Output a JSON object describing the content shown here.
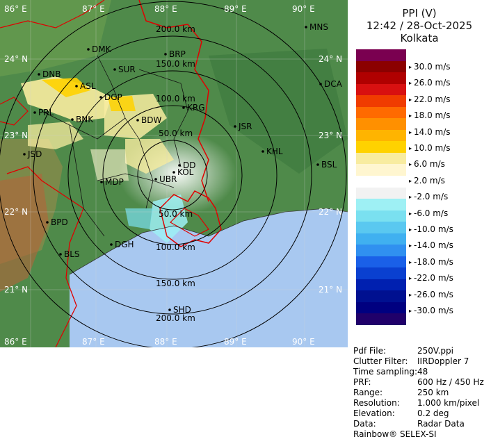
{
  "header": {
    "title": "PPI (V)",
    "datetime": "12:42 / 28-Oct-2025",
    "station": "Kolkata"
  },
  "legend": {
    "colors": [
      "#7a0050",
      "#8b0000",
      "#b00000",
      "#d81010",
      "#f03c00",
      "#ff6a00",
      "#ff9000",
      "#ffb400",
      "#ffd200",
      "#f8eca0",
      "#fff6d0",
      "#ffffff",
      "#f2f2f2",
      "#9ef0f4",
      "#7ae0f0",
      "#5ac8f0",
      "#40b0f0",
      "#3090f0",
      "#1a60e8",
      "#0a40d0",
      "#0020b0",
      "#001090",
      "#000080",
      "#20006a"
    ],
    "labels": [
      "30.0 m/s",
      "26.0 m/s",
      "22.0 m/s",
      "18.0 m/s",
      "14.0 m/s",
      "10.0 m/s",
      "6.0 m/s",
      "2.0 m/s",
      "-2.0 m/s",
      "-6.0 m/s",
      "-10.0 m/s",
      "-14.0 m/s",
      "-18.0 m/s",
      "-22.0 m/s",
      "-26.0 m/s",
      "-30.0 m/s"
    ]
  },
  "metadata": [
    {
      "key": "Pdf File:",
      "value": "250V.ppi"
    },
    {
      "key": "Clutter Filter:",
      "value": "IIRDoppler 7"
    },
    {
      "key": "Time sampling:",
      "value": "48"
    },
    {
      "key": "PRF:",
      "value": "600 Hz / 450 Hz"
    },
    {
      "key": "Range:",
      "value": "250 km"
    },
    {
      "key": "Resolution:",
      "value": "1.000 km/pixel"
    },
    {
      "key": "Elevation:",
      "value": "0.2 deg"
    },
    {
      "key": "Data:",
      "value": "Radar Data"
    }
  ],
  "footer": "Rainbow® SELEX-SI",
  "map": {
    "lon_labels": [
      "86° E",
      "87° E",
      "88° E",
      "89° E",
      "90° E"
    ],
    "lat_labels": [
      "24° N",
      "23° N",
      "22° N",
      "21° N"
    ],
    "range_labels": [
      "50.0 km",
      "100.0 km",
      "150.0 km",
      "200.0 km"
    ],
    "cities": [
      {
        "name": "MNS"
      },
      {
        "name": "DMK"
      },
      {
        "name": "BRP"
      },
      {
        "name": "SUR"
      },
      {
        "name": "DNB"
      },
      {
        "name": "ASL"
      },
      {
        "name": "DGP"
      },
      {
        "name": "DCA"
      },
      {
        "name": "KRG"
      },
      {
        "name": "PRL"
      },
      {
        "name": "BNK"
      },
      {
        "name": "BDW"
      },
      {
        "name": "JSR"
      },
      {
        "name": "KHL"
      },
      {
        "name": "JSD"
      },
      {
        "name": "DD"
      },
      {
        "name": "KOL"
      },
      {
        "name": "BSL"
      },
      {
        "name": "MDP"
      },
      {
        "name": "UBR"
      },
      {
        "name": "BPD"
      },
      {
        "name": "DGH"
      },
      {
        "name": "BLS"
      },
      {
        "name": "SHD"
      }
    ]
  }
}
